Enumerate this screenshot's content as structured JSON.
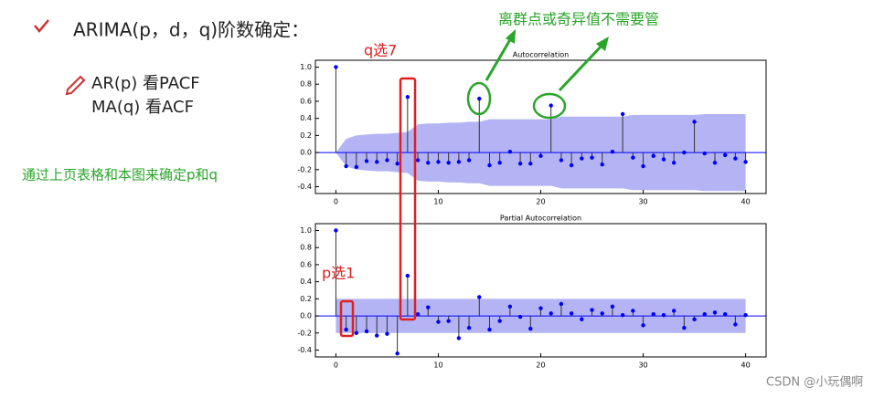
{
  "header": "ARIMA(p，d，q)阶数确定：",
  "notes": [
    "AR(p)  看PACF",
    "MA(q) 看ACF"
  ],
  "conclusion": "通过上页表格和本图来确定p和q",
  "outlier_note": "离群点或奇异值不需要管",
  "q_note": "q选7",
  "p_note": "p选1",
  "watermark": "CSDN @小玩偶啊",
  "chart_data": [
    {
      "type": "stem",
      "title": "Autocorrelation",
      "x": [
        0,
        1,
        2,
        3,
        4,
        5,
        6,
        7,
        8,
        9,
        10,
        11,
        12,
        13,
        14,
        15,
        16,
        17,
        18,
        19,
        20,
        21,
        22,
        23,
        24,
        25,
        26,
        27,
        28,
        29,
        30,
        31,
        32,
        33,
        34,
        35,
        36,
        37,
        38,
        39,
        40
      ],
      "values": [
        1.0,
        -0.16,
        -0.17,
        -0.1,
        -0.11,
        -0.09,
        -0.13,
        0.65,
        -0.09,
        -0.12,
        -0.11,
        -0.12,
        -0.11,
        -0.09,
        0.63,
        -0.15,
        -0.12,
        0.01,
        -0.13,
        -0.13,
        -0.04,
        0.55,
        -0.09,
        -0.15,
        -0.07,
        -0.06,
        -0.14,
        0.01,
        0.45,
        -0.06,
        -0.16,
        -0.04,
        -0.08,
        -0.12,
        0.0,
        0.36,
        -0.01,
        -0.12,
        -0.03,
        -0.07,
        -0.11
      ],
      "band": [
        0,
        0.16,
        0.2,
        0.21,
        0.22,
        0.22,
        0.23,
        0.24,
        0.33,
        0.34,
        0.34,
        0.35,
        0.35,
        0.36,
        0.36,
        0.39,
        0.39,
        0.39,
        0.39,
        0.39,
        0.39,
        0.39,
        0.42,
        0.42,
        0.42,
        0.42,
        0.42,
        0.42,
        0.42,
        0.44,
        0.44,
        0.44,
        0.44,
        0.44,
        0.44,
        0.44,
        0.45,
        0.45,
        0.45,
        0.45,
        0.45
      ],
      "color": "#0000ff",
      "band_color": "#b4b4f4",
      "xlim": [
        -2,
        42
      ],
      "ylim": [
        -0.48,
        1.08
      ],
      "xticks": [
        0,
        10,
        20,
        30,
        40
      ],
      "yticks": [
        {
          "value": 1,
          "label": "1.0"
        },
        0.8,
        0.6,
        0.4,
        0.2,
        {
          "value": 0,
          "label": "0.0"
        },
        -0.2,
        -0.4
      ]
    },
    {
      "type": "stem",
      "title": "Partial Autocorrelation",
      "x": [
        0,
        1,
        2,
        3,
        4,
        5,
        6,
        7,
        8,
        9,
        10,
        11,
        12,
        13,
        14,
        15,
        16,
        17,
        18,
        19,
        20,
        21,
        22,
        23,
        24,
        25,
        26,
        27,
        28,
        29,
        30,
        31,
        32,
        33,
        34,
        35,
        36,
        37,
        38,
        39,
        40
      ],
      "values": [
        1.0,
        -0.16,
        -0.2,
        -0.18,
        -0.23,
        -0.21,
        -0.44,
        0.47,
        0.02,
        0.1,
        -0.07,
        -0.06,
        -0.26,
        -0.14,
        0.22,
        -0.16,
        -0.06,
        0.11,
        -0.01,
        -0.15,
        0.09,
        0.03,
        0.14,
        0.03,
        -0.04,
        0.07,
        0.03,
        0.11,
        0.01,
        0.06,
        -0.11,
        0.02,
        0.01,
        0.06,
        -0.14,
        -0.04,
        0.02,
        0.04,
        0.02,
        -0.1,
        0.01
      ],
      "band": [
        0.2,
        0.2,
        0.2,
        0.2,
        0.2,
        0.2,
        0.2,
        0.2,
        0.2,
        0.2,
        0.2,
        0.2,
        0.2,
        0.2,
        0.2,
        0.2,
        0.2,
        0.2,
        0.2,
        0.2,
        0.2,
        0.2,
        0.2,
        0.2,
        0.2,
        0.2,
        0.2,
        0.2,
        0.2,
        0.2,
        0.2,
        0.2,
        0.2,
        0.2,
        0.2,
        0.2,
        0.2,
        0.2,
        0.2,
        0.2,
        0.2
      ],
      "color": "#0000ff",
      "band_color": "#b4b4f4",
      "xlim": [
        -2,
        42
      ],
      "ylim": [
        -0.48,
        1.08
      ],
      "xticks": [
        0,
        10,
        20,
        30,
        40
      ],
      "yticks": [
        {
          "value": 1,
          "label": "1.0"
        },
        0.8,
        0.6,
        0.4,
        0.2,
        {
          "value": 0,
          "label": "0.0"
        },
        -0.2,
        -0.4
      ]
    }
  ]
}
